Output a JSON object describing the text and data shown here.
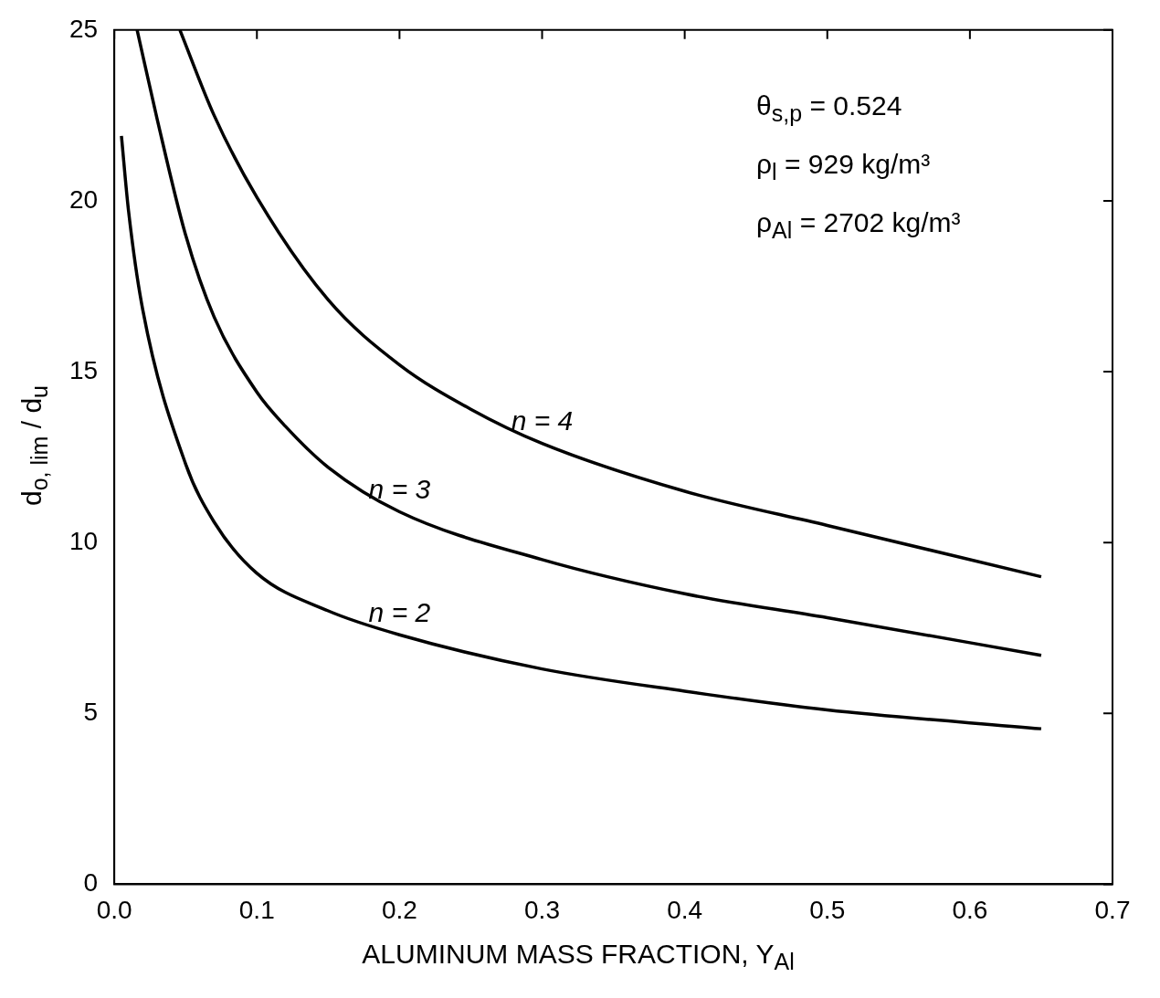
{
  "chart_data": {
    "type": "line",
    "xlabel": "ALUMINUM MASS FRACTION, Y$_{Al}$",
    "ylabel": "d$_{o, lim}$ / d$_{u}$",
    "annotations": [
      "θ$_{s,p}$ = 0.524",
      "ρ$_{l}$ = 929 kg/m³",
      "ρ$_{Al}$ = 2702 kg/m³"
    ],
    "xlim": [
      0,
      0.7
    ],
    "ylim": [
      0,
      25
    ],
    "xticks": [
      {
        "value": 0,
        "label": "0.0"
      },
      {
        "value": 0.1,
        "label": "0.1"
      },
      {
        "value": 0.2,
        "label": "0.2"
      },
      {
        "value": 0.3,
        "label": "0.3"
      },
      {
        "value": 0.4,
        "label": "0.4"
      },
      {
        "value": 0.5,
        "label": "0.5"
      },
      {
        "value": 0.6,
        "label": "0.6"
      },
      {
        "value": 0.7,
        "label": "0.7"
      }
    ],
    "yticks": [
      0,
      5,
      10,
      15,
      20,
      25
    ],
    "grid": false,
    "legend": false,
    "marker": "none",
    "line_style": "solid",
    "series": [
      {
        "name": "n = 2",
        "color": "#000000",
        "x": [
          0.005,
          0.01,
          0.02,
          0.05,
          0.07,
          0.1,
          0.15,
          0.2,
          0.3,
          0.4,
          0.5,
          0.65
        ],
        "values": [
          21.9,
          19.7,
          16.8,
          12.3,
          10.6,
          9.1,
          8.0,
          7.3,
          6.3,
          5.65,
          5.1,
          4.55
        ]
      },
      {
        "name": "n = 3",
        "color": "#000000",
        "x": [
          0.016,
          0.03,
          0.05,
          0.07,
          0.1,
          0.12,
          0.15,
          0.2,
          0.3,
          0.4,
          0.5,
          0.65
        ],
        "values": [
          25,
          22.4,
          19,
          16.6,
          14.4,
          13.4,
          12.2,
          10.9,
          9.5,
          8.5,
          7.8,
          6.7
        ]
      },
      {
        "name": "n = 4",
        "color": "#000000",
        "x": [
          0.046,
          0.07,
          0.1,
          0.15,
          0.2,
          0.25,
          0.3,
          0.4,
          0.5,
          0.65
        ],
        "values": [
          25,
          22.5,
          20.1,
          17.1,
          15.2,
          13.9,
          12.9,
          11.5,
          10.5,
          9.0
        ]
      }
    ]
  }
}
